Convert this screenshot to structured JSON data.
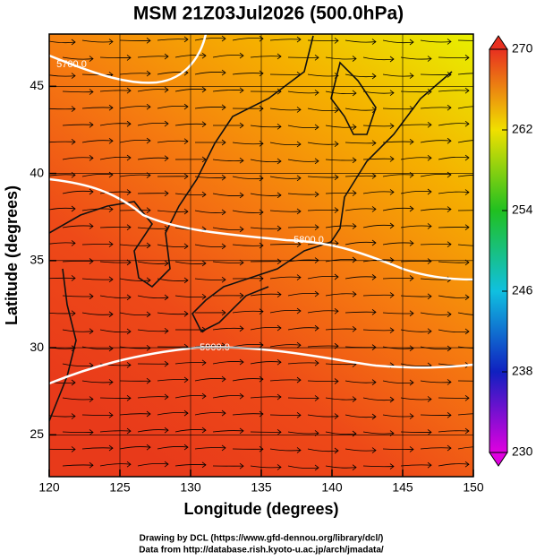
{
  "chart_data": {
    "type": "map",
    "title": "MSM 21Z03Jul2026 (500.0hPa)",
    "x_label": "Longitude (degrees)",
    "y_label": "Latitude  (degrees)",
    "xlim": [
      120,
      150
    ],
    "ylim": [
      22.6,
      48
    ],
    "xticks": [
      120,
      125,
      130,
      135,
      140,
      145,
      150
    ],
    "yticks": [
      25,
      30,
      35,
      40,
      45
    ],
    "colorbar": {
      "clim": [
        230,
        270
      ],
      "ticks": [
        230,
        238,
        246,
        254,
        262,
        270
      ]
    },
    "contours": [
      {
        "value": 5700,
        "label": "5700.0"
      },
      {
        "value": 5800,
        "label": "5800.0"
      },
      {
        "value": 5900,
        "label": "5900.0"
      }
    ],
    "credits": [
      "Drawing by DCL (https://www.gfd-dennou.org/library/dcl/)",
      "Data from http://database.rish.kyoto-u.ac.jp/arch/jmadata/"
    ]
  }
}
